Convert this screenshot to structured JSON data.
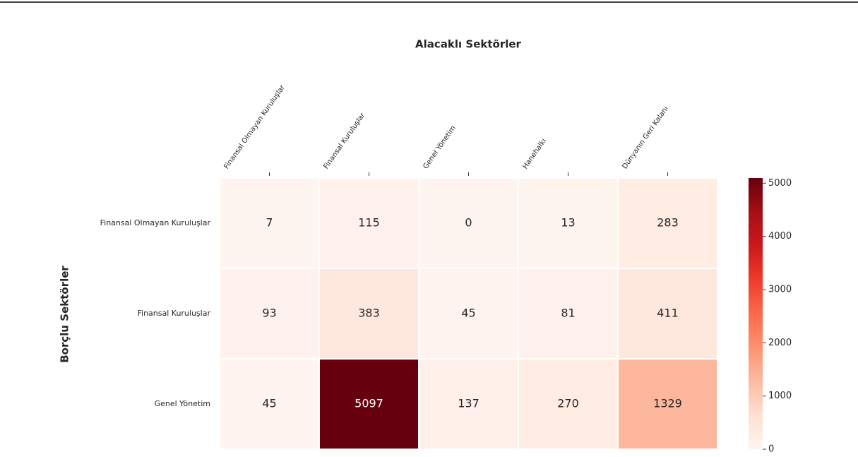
{
  "chart_data": {
    "type": "heatmap",
    "title": "Alacaklı Sektörler",
    "y_label": "Borçlu Sektörler",
    "x_categories": [
      "Finansal Olmayan Kuruluşlar",
      "Finansal Kuruluşlar",
      "Genel Yönetim",
      "Hanehalkı",
      "Dünyanın Geri Kalanı"
    ],
    "y_categories": [
      "Finansal Olmayan Kuruluşlar",
      "Finansal Kuruluşlar",
      "Genel Yönetim"
    ],
    "values": [
      [
        7,
        115,
        0,
        13,
        283
      ],
      [
        93,
        383,
        45,
        81,
        411
      ],
      [
        45,
        5097,
        137,
        270,
        1329
      ]
    ],
    "colormap": "Reds",
    "zlim": [
      0,
      5097
    ],
    "zticks": [
      0,
      1000,
      2000,
      3000,
      4000,
      5000
    ]
  }
}
